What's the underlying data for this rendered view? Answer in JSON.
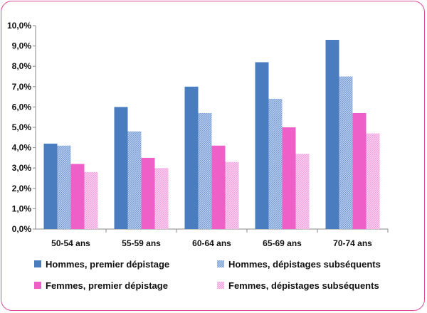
{
  "chart_data": {
    "type": "bar",
    "categories": [
      "50-54 ans",
      "55-59 ans",
      "60-64 ans",
      "65-69 ans",
      "70-74 ans"
    ],
    "ylim": [
      0,
      10
    ],
    "yticks": [
      "0,0%",
      "1,0%",
      "2,0%",
      "3,0%",
      "4,0%",
      "5,0%",
      "6,0%",
      "7,0%",
      "8,0%",
      "9,0%",
      "10,0%"
    ],
    "grid": false,
    "legend_position": "bottom",
    "series": [
      {
        "name": "Hommes, premier dépistage",
        "values": [
          4.2,
          6.0,
          7.0,
          8.2,
          9.3
        ],
        "color": "#4a7cc0",
        "pattern": "solid"
      },
      {
        "name": "Hommes,  dépistages subséquents",
        "values": [
          4.1,
          4.8,
          5.7,
          6.4,
          7.5
        ],
        "color": "#8fb0dd",
        "pattern": "hatched"
      },
      {
        "name": "Femmes, premier dépistage",
        "values": [
          3.2,
          3.5,
          4.1,
          5.0,
          5.7
        ],
        "color": "#ef5fc8",
        "pattern": "solid"
      },
      {
        "name": "Femmes,  dépistages subséquents",
        "values": [
          2.8,
          3.0,
          3.3,
          3.7,
          4.7
        ],
        "color": "#f7a8e2",
        "pattern": "hatched"
      }
    ]
  }
}
